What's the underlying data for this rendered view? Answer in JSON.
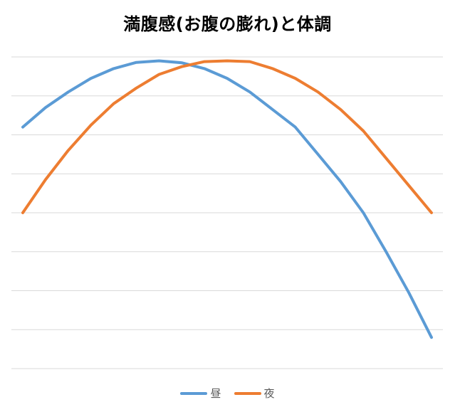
{
  "chart_data": {
    "type": "line",
    "title": "満腹感(お腹の膨れ)と体調",
    "xlabel": "",
    "ylabel": "",
    "x": [
      0,
      1,
      2,
      3,
      4,
      5,
      6,
      7,
      8,
      9,
      10,
      11,
      12,
      13,
      14,
      15,
      16,
      17,
      18
    ],
    "ylim": [
      0,
      8
    ],
    "grid": true,
    "legend_position": "bottom",
    "series": [
      {
        "name": "昼",
        "color": "#5B9BD5",
        "values": [
          6.2,
          6.7,
          7.1,
          7.45,
          7.7,
          7.86,
          7.9,
          7.85,
          7.7,
          7.45,
          7.1,
          6.65,
          6.2,
          5.5,
          4.8,
          4.0,
          3.0,
          1.95,
          0.8
        ]
      },
      {
        "name": "夜",
        "color": "#ED7D31",
        "values": [
          4.0,
          4.85,
          5.6,
          6.25,
          6.8,
          7.2,
          7.55,
          7.75,
          7.88,
          7.9,
          7.88,
          7.7,
          7.45,
          7.1,
          6.65,
          6.1,
          5.4,
          4.7,
          4.0
        ]
      }
    ]
  }
}
